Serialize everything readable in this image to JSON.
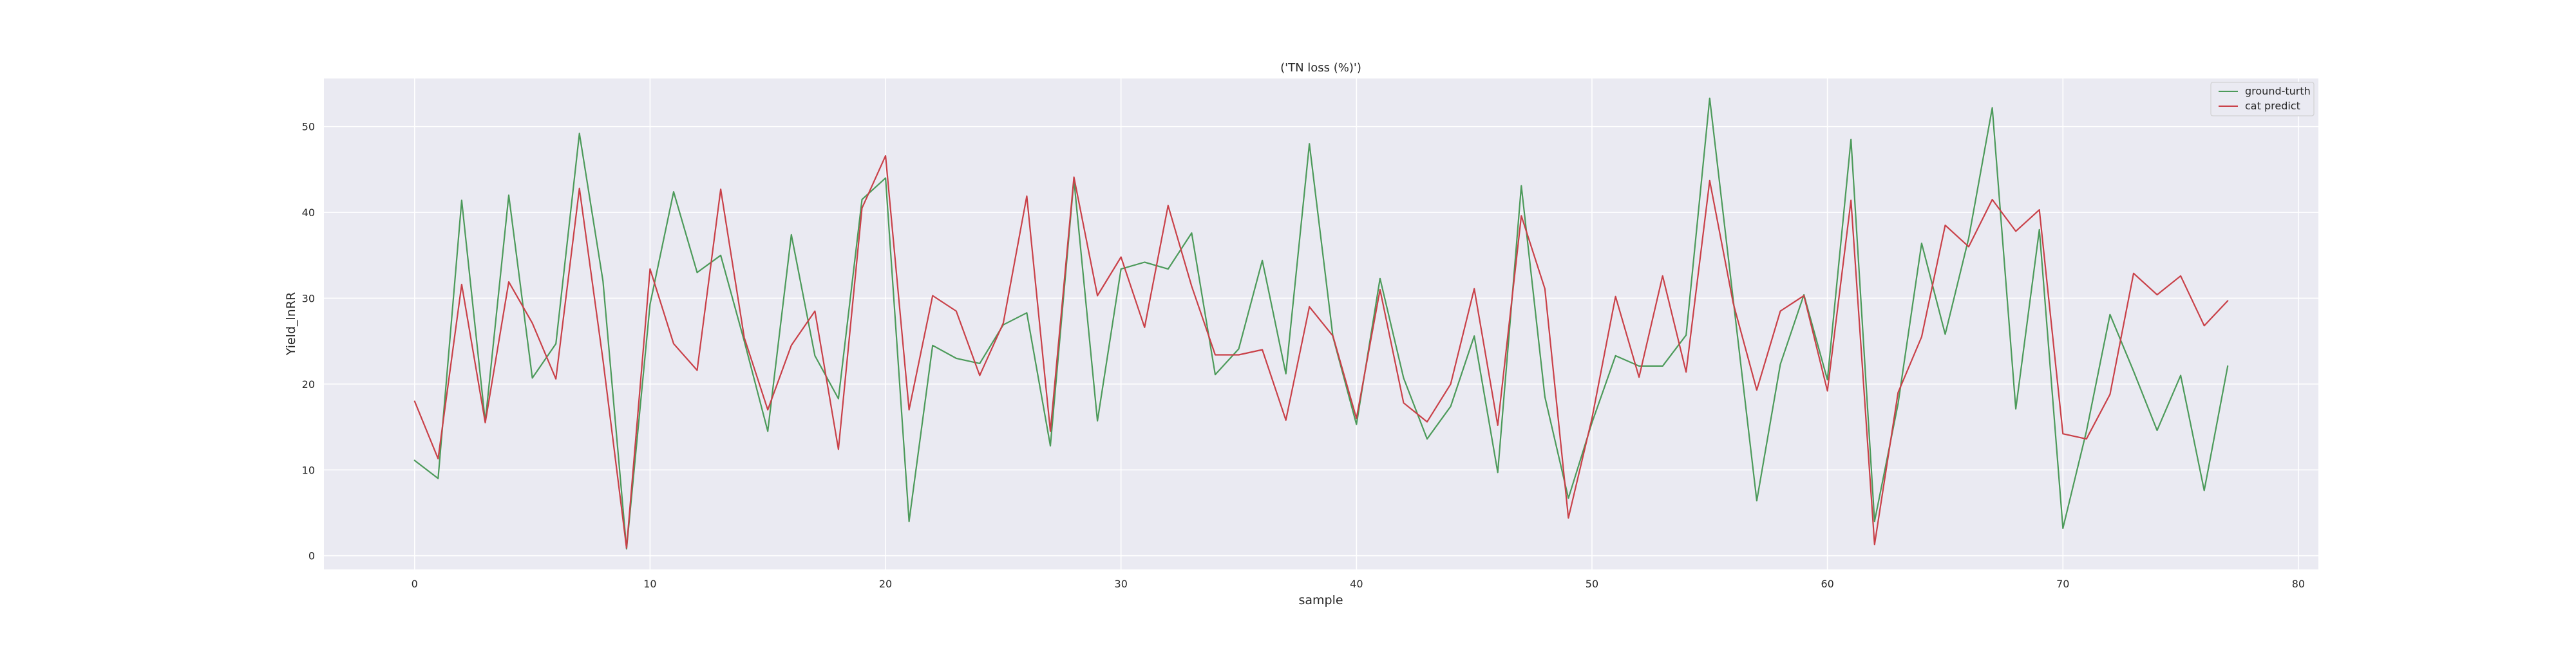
{
  "chart_data": {
    "type": "line",
    "title": "('TN loss (%)')",
    "xlabel": "sample",
    "ylabel": "Yield_lnRR",
    "xlim": [
      -3.85,
      80.85
    ],
    "ylim": [
      -1.6,
      55.6
    ],
    "xticks": [
      0,
      10,
      20,
      30,
      40,
      50,
      60,
      70,
      80
    ],
    "yticks": [
      0,
      10,
      20,
      30,
      40,
      50
    ],
    "grid": true,
    "legend_position": "top-right",
    "x": [
      0,
      1,
      2,
      3,
      4,
      5,
      6,
      7,
      8,
      9,
      10,
      11,
      12,
      13,
      14,
      15,
      16,
      17,
      18,
      19,
      20,
      21,
      22,
      23,
      24,
      25,
      26,
      27,
      28,
      29,
      30,
      31,
      32,
      33,
      34,
      35,
      36,
      37,
      38,
      39,
      40,
      41,
      42,
      43,
      44,
      45,
      46,
      47,
      48,
      49,
      50,
      51,
      52,
      53,
      54,
      55,
      56,
      57,
      58,
      59,
      60,
      61,
      62,
      63,
      64,
      65,
      66,
      67,
      68,
      69,
      70,
      71,
      72,
      73,
      74,
      75,
      76,
      77
    ],
    "series": [
      {
        "name": "ground-turth",
        "color": "#4c9a5a",
        "values": [
          11.1,
          9.0,
          41.4,
          15.6,
          42.0,
          20.7,
          24.7,
          49.2,
          32.0,
          0.8,
          29.3,
          42.4,
          33.0,
          35.0,
          25.0,
          14.5,
          37.4,
          23.3,
          18.3,
          41.5,
          44.0,
          4.0,
          24.5,
          23.0,
          22.4,
          26.9,
          28.3,
          12.8,
          43.8,
          15.7,
          33.4,
          34.2,
          33.4,
          37.6,
          21.1,
          24.1,
          34.4,
          21.2,
          48.0,
          25.5,
          15.3,
          32.3,
          20.7,
          13.6,
          17.4,
          25.6,
          9.7,
          43.1,
          18.5,
          6.7,
          15.5,
          23.3,
          22.1,
          22.1,
          25.7,
          53.3,
          29.8,
          6.4,
          22.3,
          30.4,
          20.5,
          48.5,
          4.0,
          17.7,
          36.4,
          25.8,
          37.0,
          52.2,
          17.1,
          38.0,
          3.2,
          14.5,
          28.1,
          21.5,
          14.6,
          21.0,
          7.6,
          22.1
        ]
      },
      {
        "name": "cat predict",
        "color": "#c94048",
        "values": [
          18.0,
          11.3,
          31.6,
          15.5,
          31.9,
          27.1,
          20.6,
          42.8,
          22.8,
          0.9,
          33.4,
          24.7,
          21.6,
          42.7,
          25.4,
          17.0,
          24.5,
          28.5,
          12.4,
          40.5,
          46.6,
          17.0,
          30.3,
          28.5,
          21.0,
          27.1,
          41.9,
          14.5,
          44.1,
          30.3,
          34.8,
          26.6,
          40.8,
          31.4,
          23.4,
          23.4,
          24.0,
          15.8,
          29.0,
          25.6,
          16.0,
          31.0,
          17.8,
          15.6,
          20.0,
          31.1,
          15.2,
          39.6,
          31.1,
          4.4,
          16.0,
          30.2,
          20.8,
          32.6,
          21.4,
          43.7,
          29.4,
          19.3,
          28.5,
          30.3,
          19.2,
          41.4,
          1.3,
          19.0,
          25.5,
          38.5,
          36.0,
          41.5,
          37.8,
          40.3,
          14.2,
          13.6,
          18.8,
          32.9,
          30.4,
          32.6,
          26.8,
          29.7
        ]
      }
    ]
  }
}
